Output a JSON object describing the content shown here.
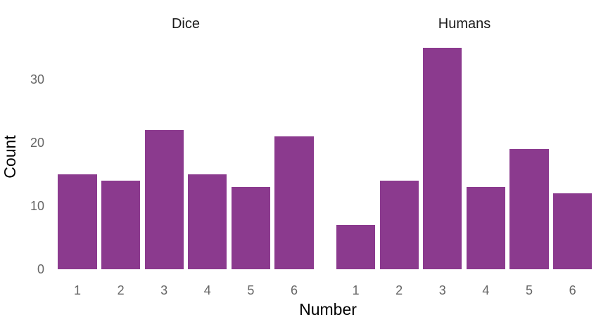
{
  "chart_data": {
    "type": "bar",
    "title": "",
    "xlabel": "Number",
    "ylabel": "Count",
    "categories": [
      "1",
      "2",
      "3",
      "4",
      "5",
      "6"
    ],
    "facets": [
      {
        "label": "Dice",
        "values": [
          15,
          14,
          22,
          15,
          13,
          21
        ]
      },
      {
        "label": "Humans",
        "values": [
          7,
          14,
          35,
          13,
          19,
          12
        ]
      }
    ],
    "y_ticks": [
      0,
      10,
      20,
      30
    ],
    "ylim": [
      0,
      36.7
    ],
    "grid": false,
    "legend": "none",
    "colors": {
      "bar_fill": "#8B3A8E",
      "tick_label": "#666666",
      "facet_title": "#1a1a1a",
      "axis_title": "#000000",
      "background": "#ffffff"
    }
  }
}
